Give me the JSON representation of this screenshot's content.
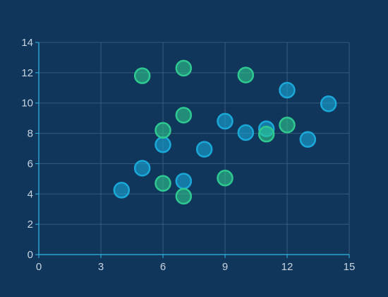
{
  "chart_data": {
    "type": "scatter",
    "title": "",
    "xlabel": "",
    "ylabel": "",
    "xlim": [
      0,
      15
    ],
    "ylim": [
      0,
      14
    ],
    "xticks": [
      0,
      3,
      6,
      9,
      12,
      15
    ],
    "yticks": [
      0,
      2,
      4,
      6,
      8,
      10,
      12,
      14
    ],
    "grid": true,
    "series": [
      {
        "color": "#1aa8d8",
        "points": [
          {
            "x": 4,
            "y": 4.25
          },
          {
            "x": 5,
            "y": 5.7
          },
          {
            "x": 6,
            "y": 7.25
          },
          {
            "x": 7,
            "y": 4.85
          },
          {
            "x": 8,
            "y": 6.95
          },
          {
            "x": 9,
            "y": 8.8
          },
          {
            "x": 10,
            "y": 8.05
          },
          {
            "x": 11,
            "y": 8.3
          },
          {
            "x": 12,
            "y": 10.85
          },
          {
            "x": 13,
            "y": 7.6
          },
          {
            "x": 14,
            "y": 9.95
          }
        ]
      },
      {
        "color": "#2ec990",
        "points": [
          {
            "x": 5,
            "y": 11.8
          },
          {
            "x": 6,
            "y": 8.2
          },
          {
            "x": 6,
            "y": 4.7
          },
          {
            "x": 7,
            "y": 12.3
          },
          {
            "x": 7,
            "y": 9.2
          },
          {
            "x": 7,
            "y": 3.85
          },
          {
            "x": 9,
            "y": 5.05
          },
          {
            "x": 10,
            "y": 11.85
          },
          {
            "x": 11,
            "y": 7.95
          },
          {
            "x": 12,
            "y": 8.55
          }
        ]
      }
    ]
  }
}
